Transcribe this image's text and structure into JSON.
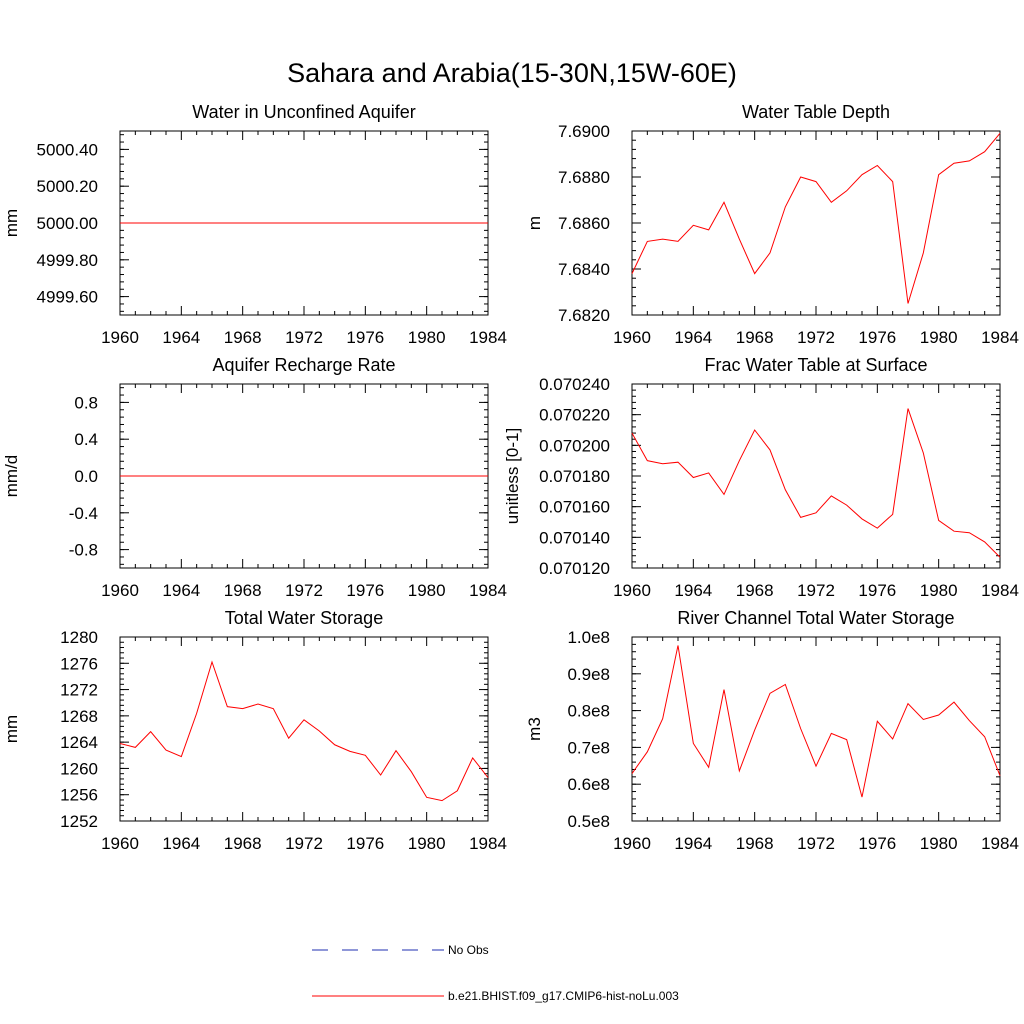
{
  "title": "Sahara and Arabia(15-30N,15W-60E)",
  "colors": {
    "model": "#ff0000",
    "obs": "#1f2fb0",
    "axis": "#000000"
  },
  "legend": {
    "obs": "No Obs",
    "model": "b.e21.BHIST.f09_g17.CMIP6-hist-noLu.003"
  },
  "chart_data": [
    {
      "type": "line",
      "title": "Water in Unconfined Aquifer",
      "xlabel": "",
      "ylabel": "mm",
      "xlim": [
        1960,
        1984
      ],
      "ylim": [
        4999.5,
        5000.5
      ],
      "xticks": [
        "1960",
        "1964",
        "1968",
        "1972",
        "1976",
        "1980",
        "1984"
      ],
      "yticks": [
        4999.6,
        4999.8,
        5000.0,
        5000.2,
        5000.4
      ],
      "yticklabels": [
        "4999.60",
        "4999.80",
        "5000.00",
        "5000.20",
        "5000.40"
      ],
      "years": [
        1960,
        1961,
        1962,
        1963,
        1964,
        1965,
        1966,
        1967,
        1968,
        1969,
        1970,
        1971,
        1972,
        1973,
        1974,
        1975,
        1976,
        1977,
        1978,
        1979,
        1980,
        1981,
        1982,
        1983,
        1984
      ],
      "series": [
        {
          "values": [
            5000,
            5000,
            5000,
            5000,
            5000,
            5000,
            5000,
            5000,
            5000,
            5000,
            5000,
            5000,
            5000,
            5000,
            5000,
            5000,
            5000,
            5000,
            5000,
            5000,
            5000,
            5000,
            5000,
            5000,
            5000
          ]
        }
      ]
    },
    {
      "type": "line",
      "title": "Water Table Depth",
      "xlabel": "",
      "ylabel": "m",
      "xlim": [
        1960,
        1984
      ],
      "ylim": [
        7.682,
        7.69
      ],
      "xticks": [
        "1960",
        "1964",
        "1968",
        "1972",
        "1976",
        "1980",
        "1984"
      ],
      "yticks": [
        7.682,
        7.684,
        7.686,
        7.688,
        7.69
      ],
      "yticklabels": [
        "7.6820",
        "7.6840",
        "7.6860",
        "7.6880",
        "7.6900"
      ],
      "years": [
        1960,
        1961,
        1962,
        1963,
        1964,
        1965,
        1966,
        1967,
        1968,
        1969,
        1970,
        1971,
        1972,
        1973,
        1974,
        1975,
        1976,
        1977,
        1978,
        1979,
        1980,
        1981,
        1982,
        1983,
        1984
      ],
      "series": [
        {
          "values": [
            7.6838,
            7.6852,
            7.6853,
            7.6852,
            7.6859,
            7.6857,
            7.6869,
            7.6853,
            7.6838,
            7.6847,
            7.6867,
            7.688,
            7.6878,
            7.6869,
            7.6874,
            7.6881,
            7.6885,
            7.6878,
            7.6825,
            7.6847,
            7.6881,
            7.6886,
            7.6887,
            7.6891,
            7.6899
          ]
        }
      ]
    },
    {
      "type": "line",
      "title": "Aquifer Recharge Rate",
      "xlabel": "",
      "ylabel": "mm/d",
      "xlim": [
        1960,
        1984
      ],
      "ylim": [
        -1.0,
        1.0
      ],
      "xticks": [
        "1960",
        "1964",
        "1968",
        "1972",
        "1976",
        "1980",
        "1984"
      ],
      "yticks": [
        -0.8,
        -0.4,
        0.0,
        0.4,
        0.8
      ],
      "yticklabels": [
        "-0.8",
        "-0.4",
        "0.0",
        "0.4",
        "0.8"
      ],
      "years": [
        1960,
        1961,
        1962,
        1963,
        1964,
        1965,
        1966,
        1967,
        1968,
        1969,
        1970,
        1971,
        1972,
        1973,
        1974,
        1975,
        1976,
        1977,
        1978,
        1979,
        1980,
        1981,
        1982,
        1983,
        1984
      ],
      "series": [
        {
          "values": [
            0,
            0,
            0,
            0,
            0,
            0,
            0,
            0,
            0,
            0,
            0,
            0,
            0,
            0,
            0,
            0,
            0,
            0,
            0,
            0,
            0,
            0,
            0,
            0,
            0
          ]
        }
      ]
    },
    {
      "type": "line",
      "title": "Frac Water Table at Surface",
      "xlabel": "",
      "ylabel": "unitless [0-1]",
      "xlim": [
        1960,
        1984
      ],
      "ylim": [
        0.07012,
        0.07024
      ],
      "xticks": [
        "1960",
        "1964",
        "1968",
        "1972",
        "1976",
        "1980",
        "1984"
      ],
      "yticks": [
        0.07012,
        0.07014,
        0.07016,
        0.07018,
        0.0702,
        0.07022,
        0.07024
      ],
      "yticklabels": [
        "0.070120",
        "0.070140",
        "0.070160",
        "0.070180",
        "0.070200",
        "0.070220",
        "0.070240"
      ],
      "years": [
        1960,
        1961,
        1962,
        1963,
        1964,
        1965,
        1966,
        1967,
        1968,
        1969,
        1970,
        1971,
        1972,
        1973,
        1974,
        1975,
        1976,
        1977,
        1978,
        1979,
        1980,
        1981,
        1982,
        1983,
        1984
      ],
      "series": [
        {
          "values": [
            0.070208,
            0.07019,
            0.070188,
            0.070189,
            0.070179,
            0.070182,
            0.070168,
            0.07019,
            0.07021,
            0.070197,
            0.070171,
            0.070153,
            0.070156,
            0.070167,
            0.070161,
            0.070152,
            0.070146,
            0.070155,
            0.070224,
            0.070195,
            0.070151,
            0.070144,
            0.070143,
            0.070137,
            0.070127
          ]
        }
      ]
    },
    {
      "type": "line",
      "title": "Total Water Storage",
      "xlabel": "",
      "ylabel": "mm",
      "xlim": [
        1960,
        1984
      ],
      "ylim": [
        1252,
        1280
      ],
      "xticks": [
        "1960",
        "1964",
        "1968",
        "1972",
        "1976",
        "1980",
        "1984"
      ],
      "yticks": [
        1252,
        1256,
        1260,
        1264,
        1268,
        1272,
        1276,
        1280
      ],
      "yticklabels": [
        "1252",
        "1256",
        "1260",
        "1264",
        "1268",
        "1272",
        "1276",
        "1280"
      ],
      "years": [
        1960,
        1961,
        1962,
        1963,
        1964,
        1965,
        1966,
        1967,
        1968,
        1969,
        1970,
        1971,
        1972,
        1973,
        1974,
        1975,
        1976,
        1977,
        1978,
        1979,
        1980,
        1981,
        1982,
        1983,
        1984
      ],
      "series": [
        {
          "values": [
            1263.8,
            1263.2,
            1265.6,
            1262.8,
            1261.8,
            1268.4,
            1276.2,
            1269.4,
            1269.1,
            1269.8,
            1269.1,
            1264.6,
            1267.4,
            1265.7,
            1263.6,
            1262.6,
            1262.0,
            1259.0,
            1262.7,
            1259.5,
            1255.6,
            1255.1,
            1256.6,
            1261.6,
            1258.6
          ]
        }
      ]
    },
    {
      "type": "line",
      "title": "River Channel Total Water Storage",
      "xlabel": "",
      "ylabel": "m3",
      "xlim": [
        1960,
        1984
      ],
      "ylim": [
        50000000,
        100000000
      ],
      "xticks": [
        "1960",
        "1964",
        "1968",
        "1972",
        "1976",
        "1980",
        "1984"
      ],
      "yticks": [
        50000000,
        60000000,
        70000000,
        80000000,
        90000000,
        100000000
      ],
      "yticklabels": [
        "0.5e8",
        "0.6e8",
        "0.7e8",
        "0.8e8",
        "0.9e8",
        "1.0e8"
      ],
      "years": [
        1960,
        1961,
        1962,
        1963,
        1964,
        1965,
        1966,
        1967,
        1968,
        1969,
        1970,
        1971,
        1972,
        1973,
        1974,
        1975,
        1976,
        1977,
        1978,
        1979,
        1980,
        1981,
        1982,
        1983,
        1984
      ],
      "series": [
        {
          "values": [
            62900000,
            68800000,
            77800000,
            97700000,
            71100000,
            64600000,
            85700000,
            63600000,
            74700000,
            84700000,
            87100000,
            75100000,
            64900000,
            73800000,
            72100000,
            56500000,
            77100000,
            72300000,
            81900000,
            77600000,
            78800000,
            82300000,
            77300000,
            72900000,
            62300000
          ]
        }
      ]
    }
  ]
}
